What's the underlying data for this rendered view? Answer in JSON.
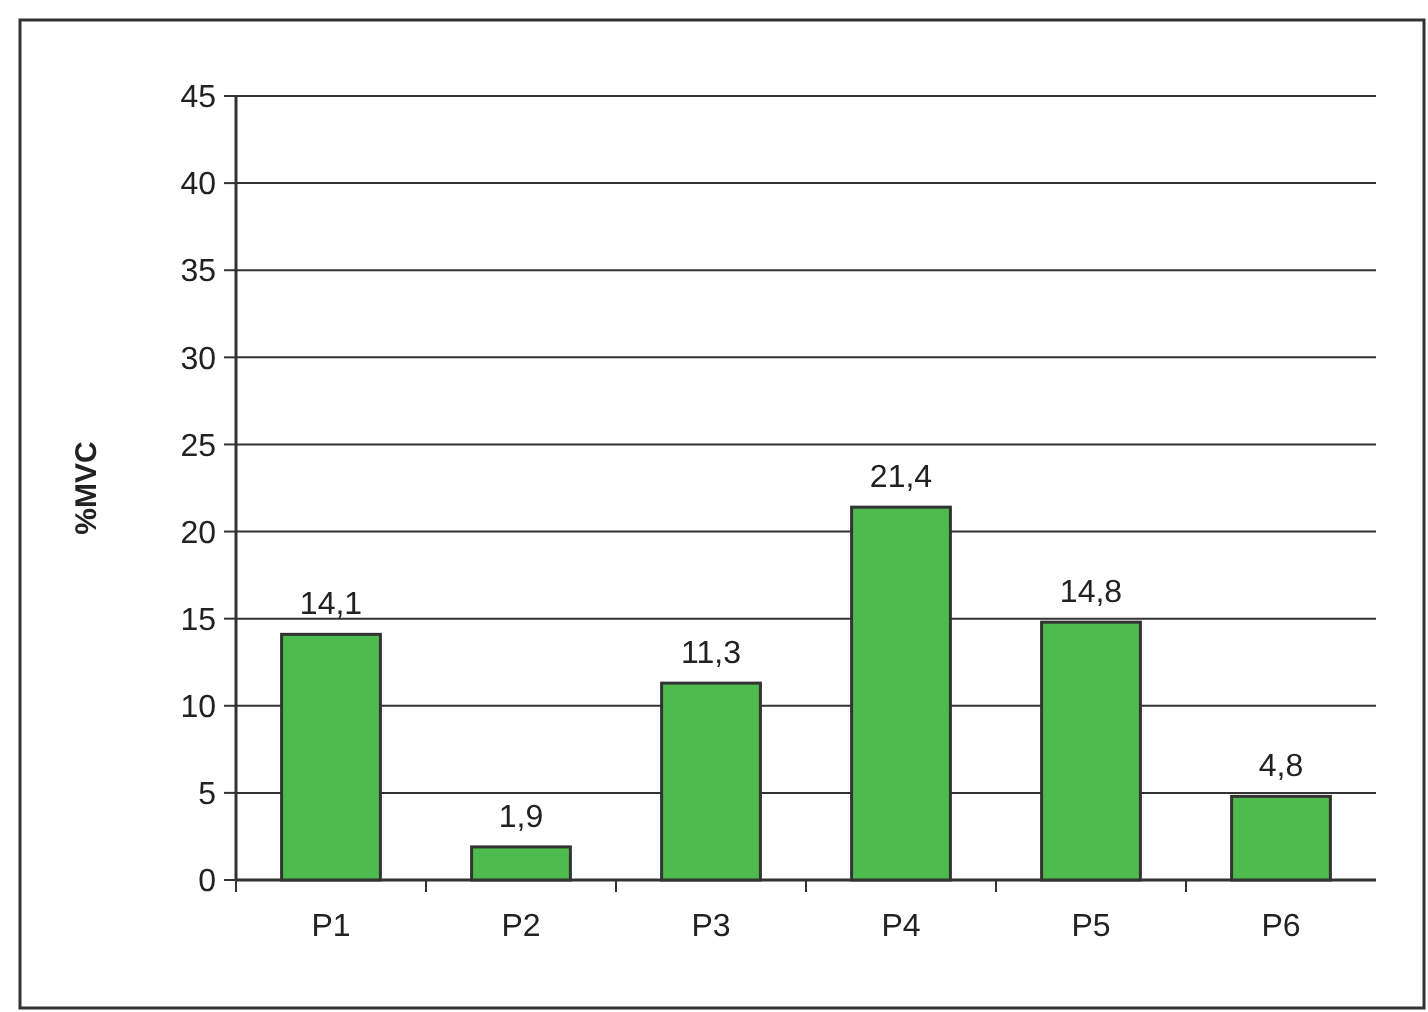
{
  "chart_data": {
    "type": "bar",
    "ylabel": "%MVC",
    "categories": [
      "P1",
      "P2",
      "P3",
      "P4",
      "P5",
      "P6"
    ],
    "values": [
      14.1,
      1.9,
      11.3,
      21.4,
      14.8,
      4.8
    ],
    "value_labels": [
      "14,1",
      "1,9",
      "11,3",
      "21,4",
      "14,8",
      "4,8"
    ],
    "color": "#4dbb4d",
    "ylim": [
      0,
      45
    ],
    "yticks": [
      0,
      5,
      10,
      15,
      20,
      25,
      30,
      35,
      40,
      45
    ],
    "grid": "y"
  }
}
